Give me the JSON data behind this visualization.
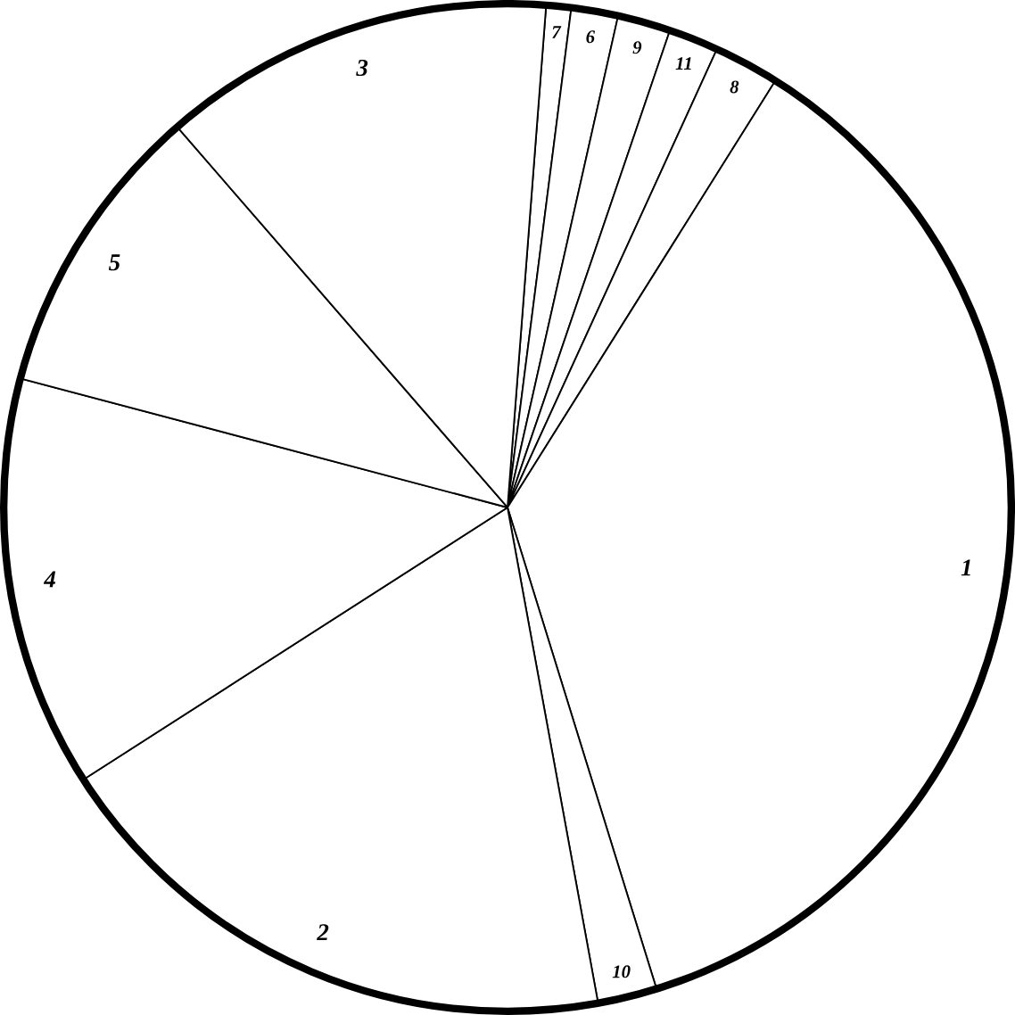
{
  "chart_data": {
    "type": "pie",
    "categories": [
      "7",
      "6",
      "9",
      "11",
      "8",
      "1",
      "10",
      "2",
      "4",
      "5",
      "3"
    ],
    "values": [
      0.8,
      1.5,
      1.7,
      1.6,
      2.1,
      36.3,
      1.9,
      18.8,
      13.2,
      9.5,
      12.6
    ],
    "colors": [
      "#ffffff",
      "#ffffff",
      "#ffffff",
      "#ffffff",
      "#ffffff",
      "#ffffff",
      "#ffffff",
      "#ffffff",
      "#ffffff",
      "#ffffff",
      "#ffffff"
    ]
  }
}
